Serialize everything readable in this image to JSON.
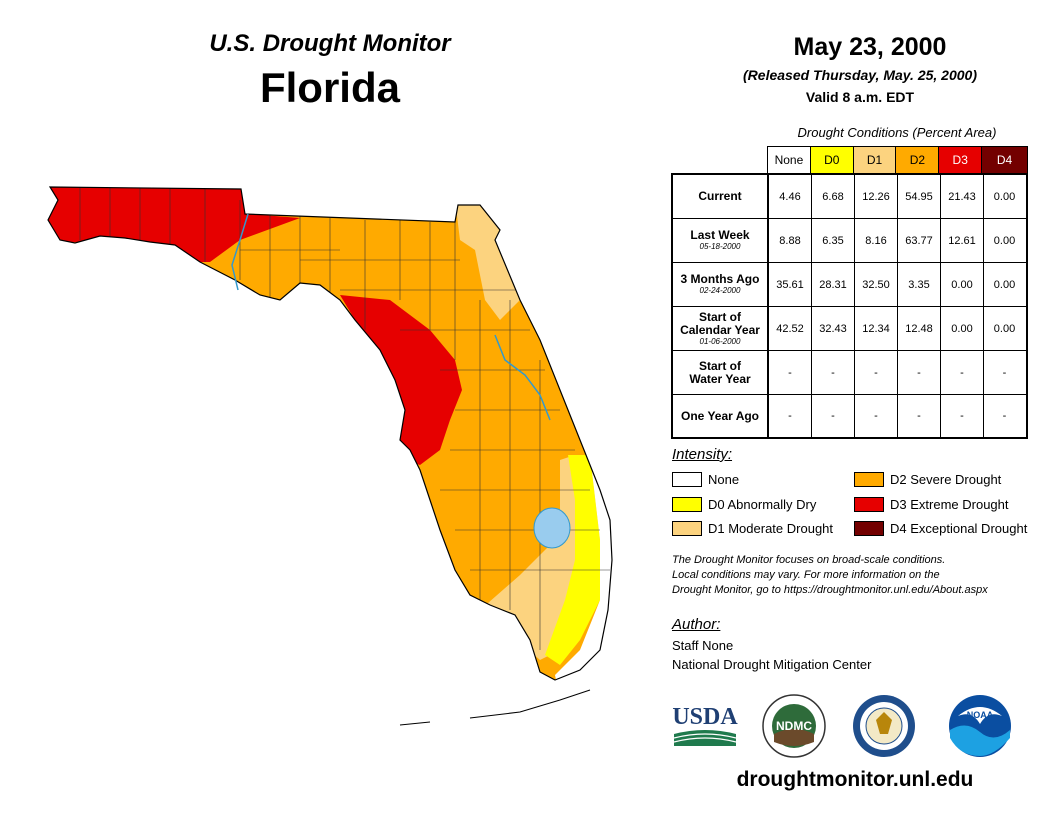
{
  "header": {
    "subtitle": "U.S. Drought Monitor",
    "state": "Florida",
    "date": "May 23, 2000",
    "released": "(Released Thursday, May. 25, 2000)",
    "valid": "Valid 8 a.m. EDT"
  },
  "table": {
    "caption": "Drought Conditions (Percent Area)",
    "columns": [
      {
        "label": "None",
        "color": "#ffffff",
        "text_color": "#000000"
      },
      {
        "label": "D0",
        "color": "#ffff00",
        "text_color": "#000000"
      },
      {
        "label": "D1",
        "color": "#fcd37f",
        "text_color": "#000000"
      },
      {
        "label": "D2",
        "color": "#ffaa00",
        "text_color": "#000000"
      },
      {
        "label": "D3",
        "color": "#e60000",
        "text_color": "#ffffff"
      },
      {
        "label": "D4",
        "color": "#730000",
        "text_color": "#ffffff"
      }
    ],
    "rows": [
      {
        "label": "Current",
        "label2": "",
        "date": "",
        "values": [
          "4.46",
          "6.68",
          "12.26",
          "54.95",
          "21.43",
          "0.00"
        ]
      },
      {
        "label": "Last Week",
        "label2": "",
        "date": "05-18-2000",
        "values": [
          "8.88",
          "6.35",
          "8.16",
          "63.77",
          "12.61",
          "0.00"
        ]
      },
      {
        "label": "3 Months Ago",
        "label2": "",
        "date": "02-24-2000",
        "values": [
          "35.61",
          "28.31",
          "32.50",
          "3.35",
          "0.00",
          "0.00"
        ]
      },
      {
        "label": "Start of",
        "label2": "Calendar Year",
        "date": "01-06-2000",
        "values": [
          "42.52",
          "32.43",
          "12.34",
          "12.48",
          "0.00",
          "0.00"
        ]
      },
      {
        "label": "Start of",
        "label2": "Water Year",
        "date": "",
        "values": [
          "-",
          "-",
          "-",
          "-",
          "-",
          "-"
        ]
      },
      {
        "label": "One Year Ago",
        "label2": "",
        "date": "",
        "values": [
          "-",
          "-",
          "-",
          "-",
          "-",
          "-"
        ]
      }
    ]
  },
  "legend": {
    "title": "Intensity:",
    "items": [
      {
        "label": "None",
        "color": "#ffffff"
      },
      {
        "label": "D0 Abnormally Dry",
        "color": "#ffff00"
      },
      {
        "label": "D1 Moderate Drought",
        "color": "#fcd37f"
      },
      {
        "label": "D2 Severe Drought",
        "color": "#ffaa00"
      },
      {
        "label": "D3 Extreme Drought",
        "color": "#e60000"
      },
      {
        "label": "D4 Exceptional Drought",
        "color": "#730000"
      }
    ]
  },
  "note": {
    "line1": "The Drought Monitor focuses on broad-scale conditions.",
    "line2": "Local conditions may vary. For more information on the",
    "line3": "Drought Monitor, go to https://droughtmonitor.unl.edu/About.aspx"
  },
  "author": {
    "title": "Author:",
    "name": "Staff None",
    "org": "National Drought Mitigation Center"
  },
  "logos": {
    "usda": "USDA",
    "ndmc": "NDMC",
    "noaa": "NOAA"
  },
  "url": "droughtmonitor.unl.edu"
}
